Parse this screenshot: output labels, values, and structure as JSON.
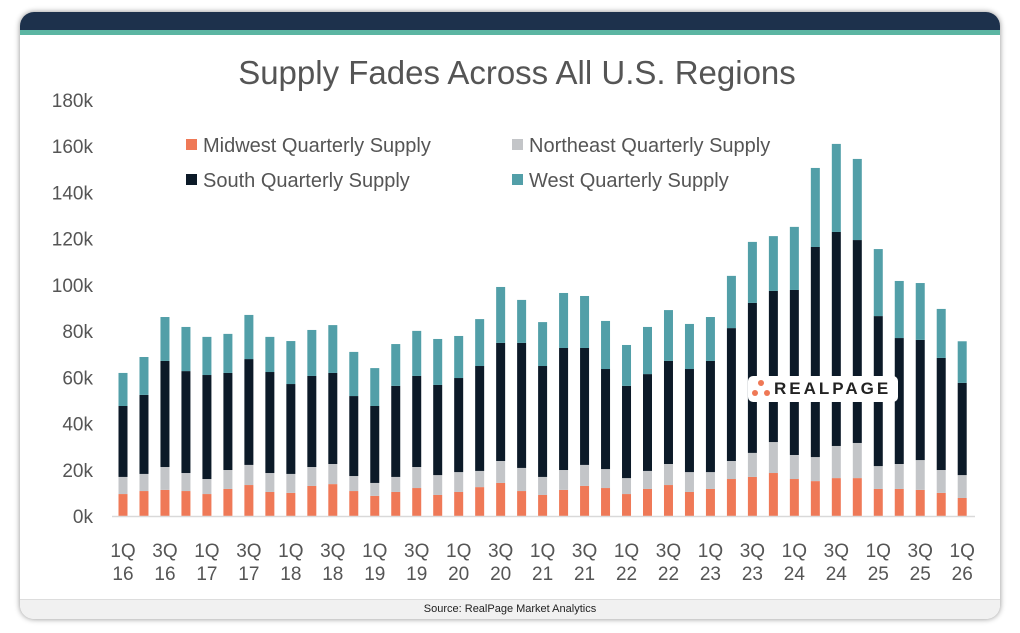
{
  "chart_data": {
    "type": "bar",
    "stacked": true,
    "title": "Supply Fades Across All U.S. Regions",
    "xlabel": "",
    "ylabel": "",
    "ylim": [
      0,
      180
    ],
    "y_unit": "k",
    "y_ticks": [
      "0k",
      "20k",
      "40k",
      "60k",
      "80k",
      "100k",
      "120k",
      "140k",
      "160k",
      "180k"
    ],
    "grid": false,
    "legend_position": "top",
    "x_tick_labels": [
      [
        "1Q",
        "16"
      ],
      [
        "3Q",
        "16"
      ],
      [
        "1Q",
        "17"
      ],
      [
        "3Q",
        "17"
      ],
      [
        "1Q",
        "18"
      ],
      [
        "3Q",
        "18"
      ],
      [
        "1Q",
        "19"
      ],
      [
        "3Q",
        "19"
      ],
      [
        "1Q",
        "20"
      ],
      [
        "3Q",
        "20"
      ],
      [
        "1Q",
        "21"
      ],
      [
        "3Q",
        "21"
      ],
      [
        "1Q",
        "22"
      ],
      [
        "3Q",
        "22"
      ],
      [
        "1Q",
        "23"
      ],
      [
        "3Q",
        "23"
      ],
      [
        "1Q",
        "24"
      ],
      [
        "3Q",
        "24"
      ],
      [
        "1Q",
        "25"
      ],
      [
        "3Q",
        "25"
      ],
      [
        "1Q",
        "26"
      ]
    ],
    "categories": [
      "1Q16",
      "2Q16",
      "3Q16",
      "4Q16",
      "1Q17",
      "2Q17",
      "3Q17",
      "4Q17",
      "1Q18",
      "2Q18",
      "3Q18",
      "4Q18",
      "1Q19",
      "2Q19",
      "3Q19",
      "4Q19",
      "1Q20",
      "2Q20",
      "3Q20",
      "4Q20",
      "1Q21",
      "2Q21",
      "3Q21",
      "4Q21",
      "1Q22",
      "2Q22",
      "3Q22",
      "4Q22",
      "1Q23",
      "2Q23",
      "3Q23",
      "4Q23",
      "1Q24",
      "2Q24",
      "3Q24",
      "4Q24",
      "1Q25",
      "2Q25",
      "3Q25",
      "4Q25",
      "1Q26"
    ],
    "series": [
      {
        "name": "Midwest Quarterly Supply",
        "color": "#ef7957",
        "values": [
          9.5,
          10.8,
          11.3,
          10.8,
          9.5,
          11.7,
          13.4,
          10.4,
          10.0,
          13.0,
          13.8,
          10.8,
          8.7,
          10.4,
          12.1,
          9.1,
          10.4,
          12.5,
          14.3,
          10.8,
          9.1,
          11.3,
          13.0,
          12.1,
          9.5,
          11.7,
          13.4,
          10.4,
          11.7,
          16.0,
          16.9,
          18.6,
          16.0,
          15.1,
          16.4,
          16.4,
          11.7,
          11.7,
          11.3,
          10.0,
          7.8
        ]
      },
      {
        "name": "Northeast Quarterly Supply",
        "color": "#c3c5c8",
        "values": [
          7.4,
          7.4,
          9.9,
          7.8,
          6.5,
          8.2,
          8.7,
          8.2,
          8.2,
          8.2,
          8.7,
          6.5,
          5.6,
          6.5,
          9.1,
          8.6,
          8.6,
          7.0,
          9.5,
          10.0,
          7.8,
          8.6,
          9.1,
          8.2,
          6.9,
          7.8,
          9.1,
          8.6,
          7.3,
          7.8,
          10.4,
          13.4,
          10.4,
          10.4,
          13.9,
          15.2,
          9.9,
          10.8,
          12.9,
          9.9,
          9.9
        ]
      },
      {
        "name": "South Quarterly Supply",
        "color": "#0c1a28",
        "values": [
          30.7,
          34.2,
          45.9,
          44.1,
          45.0,
          42.0,
          45.8,
          43.7,
          38.9,
          39.4,
          39.4,
          34.6,
          33.3,
          39.4,
          39.4,
          39.0,
          40.7,
          45.4,
          51.1,
          54.1,
          48.0,
          52.8,
          50.6,
          43.3,
          39.9,
          41.9,
          44.6,
          44.6,
          48.1,
          57.5,
          64.9,
          65.4,
          71.4,
          90.9,
          92.6,
          87.8,
          64.9,
          54.5,
          52.0,
          48.5,
          39.9
        ]
      },
      {
        "name": "West Quarterly Supply",
        "color": "#529fa8",
        "values": [
          14.3,
          16.4,
          19.0,
          19.1,
          16.5,
          16.9,
          19.1,
          15.2,
          18.6,
          19.9,
          20.7,
          19.1,
          16.4,
          18.1,
          19.5,
          19.9,
          18.2,
          20.3,
          24.2,
          18.6,
          19.0,
          23.8,
          22.5,
          20.8,
          17.7,
          20.4,
          22.0,
          19.5,
          19.0,
          22.6,
          26.4,
          23.7,
          27.3,
          34.2,
          38.1,
          35.1,
          29.0,
          24.7,
          24.6,
          21.2,
          18.0
        ]
      }
    ]
  },
  "logo": {
    "text": "REALPAGE"
  },
  "source": "Source: RealPage Market Analytics",
  "colors": {
    "header": "#1d314c",
    "accent_stripe": "#5bb5a2"
  }
}
